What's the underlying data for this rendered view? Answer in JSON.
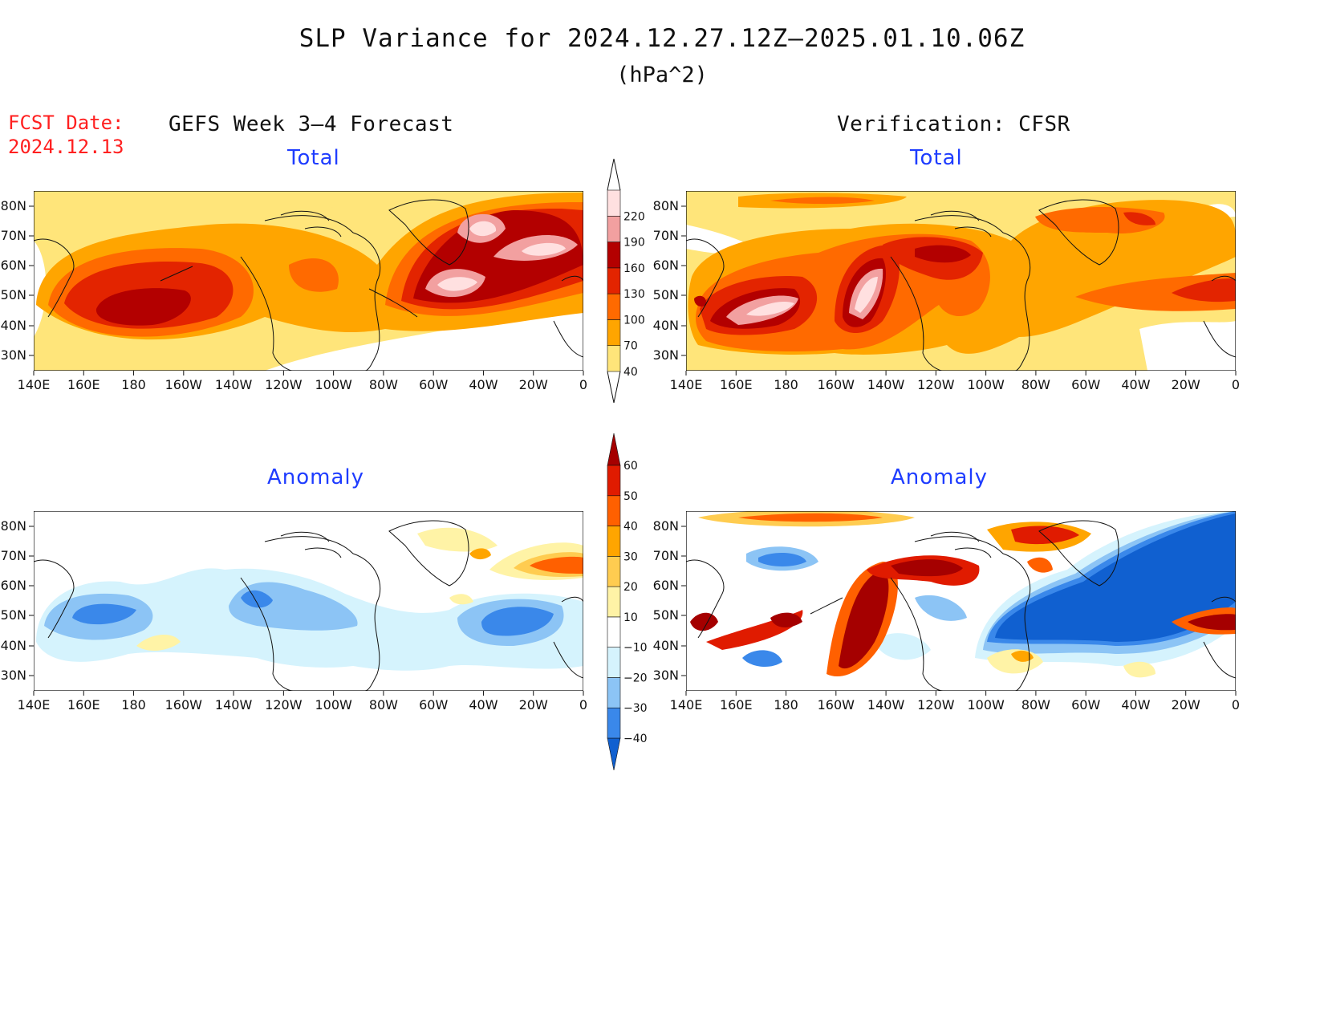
{
  "title": "SLP Variance for 2024.12.27.12Z–2025.01.10.06Z",
  "units": "(hPa^2)",
  "forecast_date": {
    "label": "FCST Date:",
    "value": "2024.12.13"
  },
  "columns": {
    "left": "GEFS Week 3–4 Forecast",
    "right": "Verification: CFSR"
  },
  "panels": {
    "total": "Total",
    "anomaly": "Anomaly"
  },
  "lat_labels": [
    "80N",
    "70N",
    "60N",
    "50N",
    "40N",
    "30N"
  ],
  "lon_labels": [
    "140E",
    "160E",
    "180",
    "160W",
    "140W",
    "120W",
    "100W",
    "80W",
    "60W",
    "40W",
    "20W",
    "0"
  ],
  "colorbar_total": {
    "levels": [
      "40",
      "70",
      "100",
      "130",
      "160",
      "190",
      "220"
    ],
    "colors": [
      "#ffe57a",
      "#ffa500",
      "#ff6a00",
      "#e32400",
      "#b30000",
      "#f2a0a0",
      "#ffe0e0"
    ]
  },
  "colorbar_anomaly": {
    "levels": [
      "−40",
      "−30",
      "−20",
      "−10",
      "10",
      "20",
      "30",
      "40",
      "50",
      "60"
    ],
    "colors": [
      "#1060d0",
      "#3a88ea",
      "#8cc4f5",
      "#d5f3fd",
      "#ffffff",
      "#fff3a6",
      "#ffcc50",
      "#ffa500",
      "#ff6000",
      "#e01b00",
      "#a50000"
    ]
  }
}
